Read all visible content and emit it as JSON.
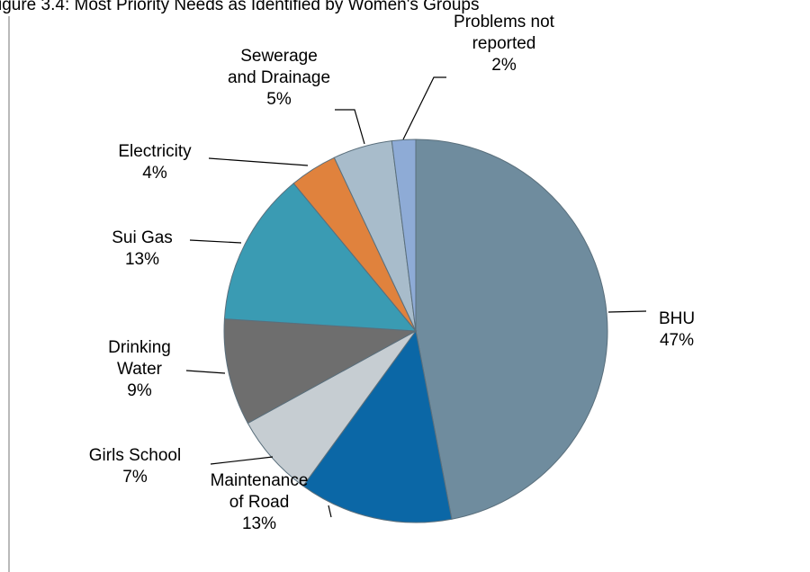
{
  "header": {
    "title_fragment": "igure 3.4: Most Priority Needs as Identified by Women's Groups"
  },
  "chart_data": {
    "type": "pie",
    "start_angle_deg": 0,
    "direction": "clockwise",
    "slices": [
      {
        "label": "BHU",
        "label_lines": [
          "BHU"
        ],
        "value": 47,
        "percent_text": "47%",
        "color": "#6f8c9e"
      },
      {
        "label": "Maintenance of Road",
        "label_lines": [
          "Maintenance",
          "of Road"
        ],
        "value": 13,
        "percent_text": "13%",
        "color": "#0b67a6"
      },
      {
        "label": "Girls School",
        "label_lines": [
          "Girls School"
        ],
        "value": 7,
        "percent_text": "7%",
        "color": "#c6cdd2"
      },
      {
        "label": "Drinking Water",
        "label_lines": [
          "Drinking",
          "Water"
        ],
        "value": 9,
        "percent_text": "9%",
        "color": "#6e6e6e"
      },
      {
        "label": "Sui Gas",
        "label_lines": [
          "Sui Gas"
        ],
        "value": 13,
        "percent_text": "13%",
        "color": "#3a9bb3"
      },
      {
        "label": "Electricity",
        "label_lines": [
          "Electricity"
        ],
        "value": 4,
        "percent_text": "4%",
        "color": "#e0823d"
      },
      {
        "label": "Sewerage and Drainage",
        "label_lines": [
          "Sewerage",
          "and Drainage"
        ],
        "value": 5,
        "percent_text": "5%",
        "color": "#a8bccb"
      },
      {
        "label": "Problems not reported",
        "label_lines": [
          "Problems not",
          "reported"
        ],
        "value": 2,
        "percent_text": "2%",
        "color": "#8eabd6"
      }
    ]
  }
}
